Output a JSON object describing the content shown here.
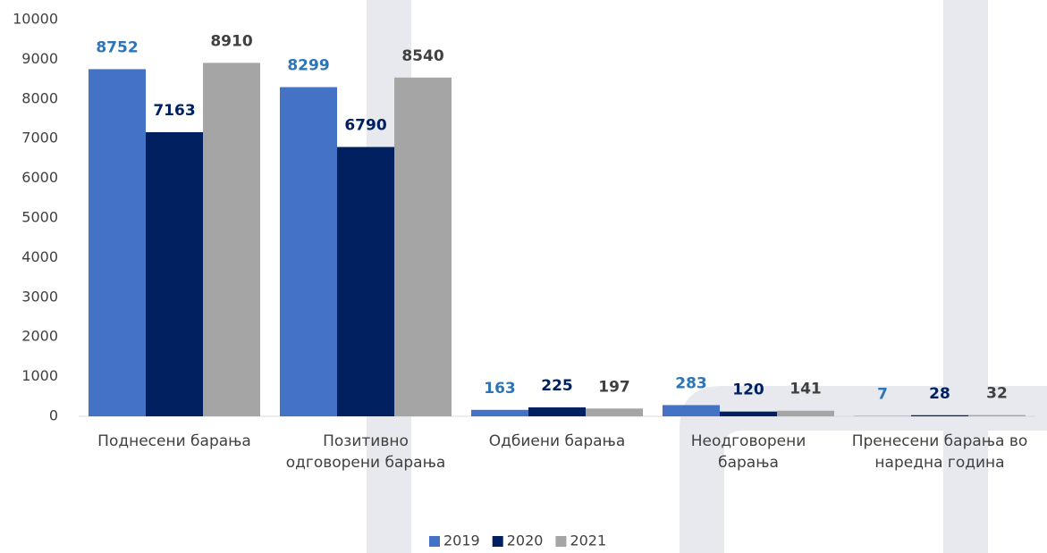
{
  "chart_data": {
    "type": "bar",
    "categories": [
      "Поднесени барања",
      "Позитивно одговорени барања",
      "Одбиени барања",
      "Неодговорени барања",
      "Пренесени барања во наредна година"
    ],
    "series": [
      {
        "name": "2019",
        "color": "#4472c4",
        "label_color": "#2e75b6",
        "values": [
          8752,
          8299,
          163,
          283,
          7
        ]
      },
      {
        "name": "2020",
        "color": "#002060",
        "label_color": "#002060",
        "values": [
          7163,
          6790,
          225,
          120,
          28
        ]
      },
      {
        "name": "2021",
        "color": "#a5a5a5",
        "label_color": "#404040",
        "values": [
          8910,
          8540,
          197,
          141,
          32
        ]
      }
    ],
    "ylim": [
      0,
      10000
    ],
    "yticks": [
      0,
      1000,
      2000,
      3000,
      4000,
      5000,
      6000,
      7000,
      8000,
      9000,
      10000
    ],
    "grid": false,
    "legend": "bottom"
  }
}
